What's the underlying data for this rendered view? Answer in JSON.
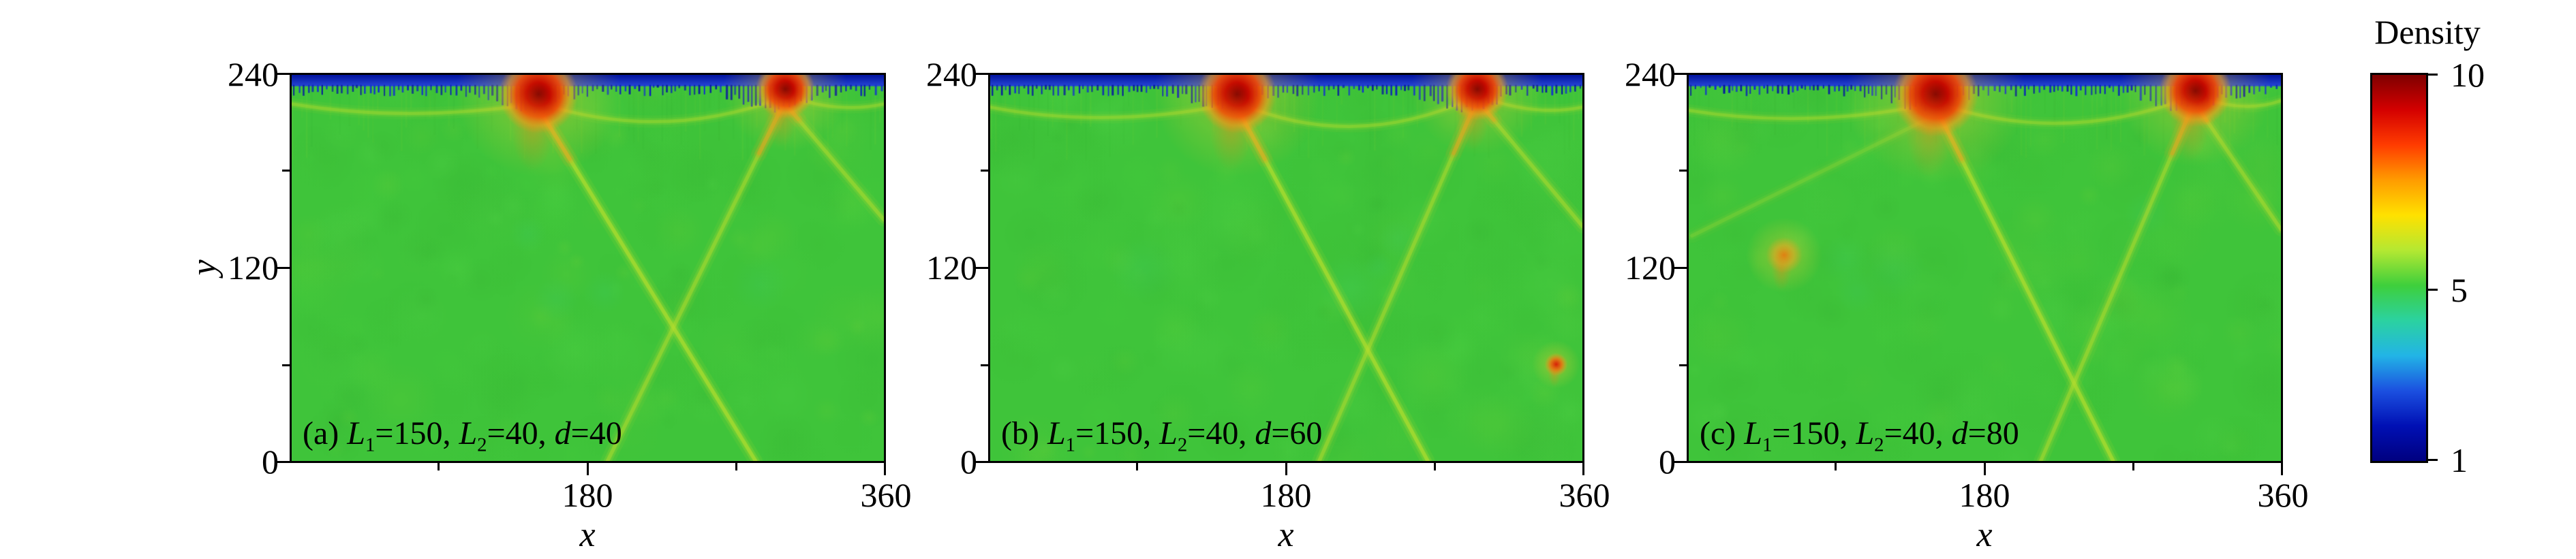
{
  "figure": {
    "colorbar": {
      "title": "Density",
      "min": 1,
      "max": 10,
      "ticks": [
        {
          "label": "10",
          "value": 10
        },
        {
          "label": "5",
          "value": 5
        },
        {
          "label": "1",
          "value": 1
        }
      ],
      "gradient_top_to_bottom": [
        "#7f0000",
        "#d40000",
        "#ff3c00",
        "#ff9c00",
        "#ffe100",
        "#b4e832",
        "#3ecf3c",
        "#2bd2a0",
        "#22b4e6",
        "#1b50e0",
        "#0010b4",
        "#000080"
      ]
    },
    "panels": [
      {
        "id": "a",
        "x_label": "x",
        "y_label": "y",
        "x_ticks": [
          "180",
          "360"
        ],
        "y_ticks": [
          "240",
          "120",
          "0"
        ],
        "caption_segments": [
          {
            "text": "(a) "
          },
          {
            "text": "L",
            "italic": true
          },
          {
            "text": "1",
            "sub": true
          },
          {
            "text": "=150, "
          },
          {
            "text": "L",
            "italic": true
          },
          {
            "text": "2",
            "sub": true
          },
          {
            "text": "=40, "
          },
          {
            "text": "d",
            "italic": true
          },
          {
            "text": "=40"
          }
        ]
      },
      {
        "id": "b",
        "x_label": "x",
        "x_ticks": [
          "180",
          "360"
        ],
        "y_ticks": [
          "240",
          "120",
          "0"
        ],
        "caption_segments": [
          {
            "text": "(b) "
          },
          {
            "text": "L",
            "italic": true
          },
          {
            "text": "1",
            "sub": true
          },
          {
            "text": "=150, "
          },
          {
            "text": "L",
            "italic": true
          },
          {
            "text": "2",
            "sub": true
          },
          {
            "text": "=40, "
          },
          {
            "text": "d",
            "italic": true
          },
          {
            "text": "=60"
          }
        ]
      },
      {
        "id": "c",
        "x_label": "x",
        "x_ticks": [
          "180",
          "360"
        ],
        "y_ticks": [
          "240",
          "120",
          "0"
        ],
        "caption_segments": [
          {
            "text": "(c) "
          },
          {
            "text": "L",
            "italic": true
          },
          {
            "text": "1",
            "sub": true
          },
          {
            "text": "=150, "
          },
          {
            "text": "L",
            "italic": true
          },
          {
            "text": "2",
            "sub": true
          },
          {
            "text": "=40, "
          },
          {
            "text": "d",
            "italic": true
          },
          {
            "text": "=80"
          }
        ]
      }
    ]
  },
  "chart_data": [
    {
      "type": "heatmap",
      "panel_label": "(a) L1=150, L2=40, d=40",
      "params": {
        "L1": 150,
        "L2": 40,
        "d": 40
      },
      "xlabel": "x",
      "ylabel": "y",
      "x_range": [
        0,
        360
      ],
      "y_range": [
        0,
        240
      ],
      "x_tick_values": [
        180,
        360
      ],
      "y_tick_values": [
        0,
        120,
        240
      ],
      "colorbar": {
        "label": "Density",
        "min": 1,
        "max": 10,
        "tick_values": [
          1,
          5,
          10
        ],
        "colormap": "jet-like"
      },
      "background_density": 5,
      "features": {
        "top_low_density_band": {
          "y_from": 233,
          "y_to": 240,
          "density": 1
        },
        "hotspots": [
          {
            "x": 150,
            "y": 228,
            "r": 24,
            "density": 10
          },
          {
            "x": 300,
            "y": 231,
            "r": 18,
            "density": 9.5
          }
        ],
        "spots": [],
        "shock_lines": [
          {
            "from": [
              152,
              216
            ],
            "to": [
              282,
              0
            ],
            "density": 6.5
          },
          {
            "from": [
              298,
              220
            ],
            "to": [
              192,
              0
            ],
            "density": 6
          },
          {
            "from": [
              300,
              222
            ],
            "to": [
              360,
              150
            ],
            "density": 6
          }
        ],
        "bow_arcs": [
          {
            "from": [
              0,
              222
            ],
            "ctrl": [
              70,
              210
            ],
            "to": [
              148,
              222
            ],
            "density": 6
          },
          {
            "from": [
              152,
              222
            ],
            "ctrl": [
              226,
              198
            ],
            "to": [
              298,
              226
            ],
            "density": 6
          },
          {
            "from": [
              304,
              226
            ],
            "ctrl": [
              334,
              216
            ],
            "to": [
              360,
              222
            ],
            "density": 6
          }
        ]
      }
    },
    {
      "type": "heatmap",
      "panel_label": "(b) L1=150, L2=40, d=60",
      "params": {
        "L1": 150,
        "L2": 40,
        "d": 60
      },
      "xlabel": "x",
      "ylabel": "y",
      "x_range": [
        0,
        360
      ],
      "y_range": [
        0,
        240
      ],
      "x_tick_values": [
        180,
        360
      ],
      "y_tick_values": [
        0,
        120,
        240
      ],
      "colorbar": {
        "label": "Density",
        "min": 1,
        "max": 10,
        "tick_values": [
          1,
          5,
          10
        ],
        "colormap": "jet-like"
      },
      "background_density": 5,
      "features": {
        "top_low_density_band": {
          "y_from": 233,
          "y_to": 240,
          "density": 1
        },
        "hotspots": [
          {
            "x": 150,
            "y": 228,
            "r": 24,
            "density": 10
          },
          {
            "x": 296,
            "y": 231,
            "r": 19,
            "density": 9.5
          }
        ],
        "spots": [
          {
            "x": 344,
            "y": 60,
            "r": 7,
            "density": 8
          }
        ],
        "shock_lines": [
          {
            "from": [
              152,
              216
            ],
            "to": [
              266,
              0
            ],
            "density": 6.5
          },
          {
            "from": [
              294,
              220
            ],
            "to": [
              200,
              0
            ],
            "density": 6
          },
          {
            "from": [
              298,
              222
            ],
            "to": [
              360,
              146
            ],
            "density": 6
          }
        ],
        "bow_arcs": [
          {
            "from": [
              0,
              220
            ],
            "ctrl": [
              70,
              206
            ],
            "to": [
              148,
              222
            ],
            "density": 6
          },
          {
            "from": [
              152,
              222
            ],
            "ctrl": [
              222,
              192
            ],
            "to": [
              294,
              226
            ],
            "density": 6
          },
          {
            "from": [
              300,
              226
            ],
            "ctrl": [
              332,
              214
            ],
            "to": [
              360,
              220
            ],
            "density": 6
          }
        ]
      }
    },
    {
      "type": "heatmap",
      "panel_label": "(c) L1=150, L2=40, d=80",
      "params": {
        "L1": 150,
        "L2": 40,
        "d": 80
      },
      "xlabel": "x",
      "ylabel": "y",
      "x_range": [
        0,
        360
      ],
      "y_range": [
        0,
        240
      ],
      "x_tick_values": [
        180,
        360
      ],
      "y_tick_values": [
        0,
        120,
        240
      ],
      "colorbar": {
        "label": "Density",
        "min": 1,
        "max": 10,
        "tick_values": [
          1,
          5,
          10
        ],
        "colormap": "jet-like"
      },
      "background_density": 5,
      "features": {
        "top_low_density_band": {
          "y_from": 233,
          "y_to": 240,
          "density": 1
        },
        "hotspots": [
          {
            "x": 150,
            "y": 228,
            "r": 26,
            "density": 10
          },
          {
            "x": 308,
            "y": 230,
            "r": 22,
            "density": 10
          }
        ],
        "spots": [
          {
            "x": 58,
            "y": 128,
            "r": 11,
            "density": 7
          }
        ],
        "shock_lines": [
          {
            "from": [
              152,
              216
            ],
            "to": [
              258,
              0
            ],
            "density": 6.5
          },
          {
            "from": [
              306,
              220
            ],
            "to": [
              214,
              0
            ],
            "density": 6
          },
          {
            "from": [
              308,
              222
            ],
            "to": [
              360,
              144
            ],
            "density": 6
          },
          {
            "from": [
              2,
              140
            ],
            "to": [
              148,
              214
            ],
            "density": 5.8
          }
        ],
        "bow_arcs": [
          {
            "from": [
              0,
              218
            ],
            "ctrl": [
              72,
              206
            ],
            "to": [
              148,
              222
            ],
            "density": 6
          },
          {
            "from": [
              152,
              222
            ],
            "ctrl": [
              228,
              196
            ],
            "to": [
              304,
              226
            ],
            "density": 6
          },
          {
            "from": [
              312,
              226
            ],
            "ctrl": [
              338,
              216
            ],
            "to": [
              360,
              224
            ],
            "density": 6
          }
        ]
      }
    }
  ]
}
